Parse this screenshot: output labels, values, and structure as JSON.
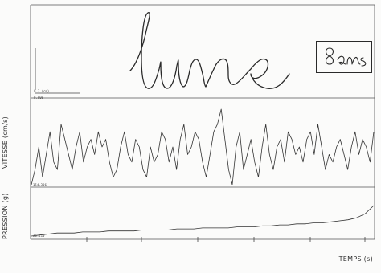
{
  "handwriting": {
    "word": "lune",
    "age_note": "8ans",
    "scale_label": "0.3 (cm)",
    "scale_zero": "0.000"
  },
  "axis_titles": {
    "vitesse": "VITESSE (cm/s)",
    "pression": "PRESSION (g)",
    "temps": "TEMPS (s)"
  },
  "panel_labels": {
    "vitesse_min": "154.306",
    "pression_min": "26.210"
  },
  "colors": {
    "ink": "#2a2a2a",
    "trace": "#333333",
    "frame": "#555555",
    "background": "#fbfbfa"
  },
  "chart_data": [
    {
      "type": "line",
      "ylabel": "VITESSE (cm/s)",
      "series": [
        {
          "values": [
            1,
            3,
            6,
            2,
            5,
            8,
            4,
            3,
            9,
            7,
            5,
            3,
            6,
            8,
            4,
            6,
            7,
            5,
            8,
            6,
            7,
            4,
            2,
            3,
            6,
            8,
            5,
            4,
            7,
            6,
            3,
            2,
            6,
            4,
            5,
            8,
            7,
            4,
            6,
            3,
            7,
            9,
            5,
            6,
            8,
            7,
            4,
            2,
            5,
            8,
            9,
            11,
            7,
            3,
            1,
            6,
            8,
            3,
            5,
            7,
            4,
            2,
            6,
            9,
            5,
            3,
            6,
            7,
            4,
            8,
            7,
            5,
            6,
            4,
            7,
            8,
            5,
            9,
            6,
            3,
            5,
            4,
            6,
            7,
            5,
            3,
            6,
            8,
            5,
            7,
            6,
            4,
            8
          ]
        }
      ]
    },
    {
      "type": "line",
      "ylabel": "PRESSION (g)",
      "xlabel": "TEMPS (s)",
      "series": [
        {
          "values": [
            0,
            1,
            2,
            3,
            3,
            3,
            4,
            4,
            4,
            5,
            5,
            5,
            5,
            6,
            6,
            6,
            6,
            7,
            7,
            7,
            8,
            8,
            8,
            8,
            9,
            9,
            9,
            10,
            10,
            11,
            11,
            12,
            12,
            13,
            13,
            14,
            15,
            16,
            18,
            22,
            30
          ]
        }
      ]
    }
  ]
}
